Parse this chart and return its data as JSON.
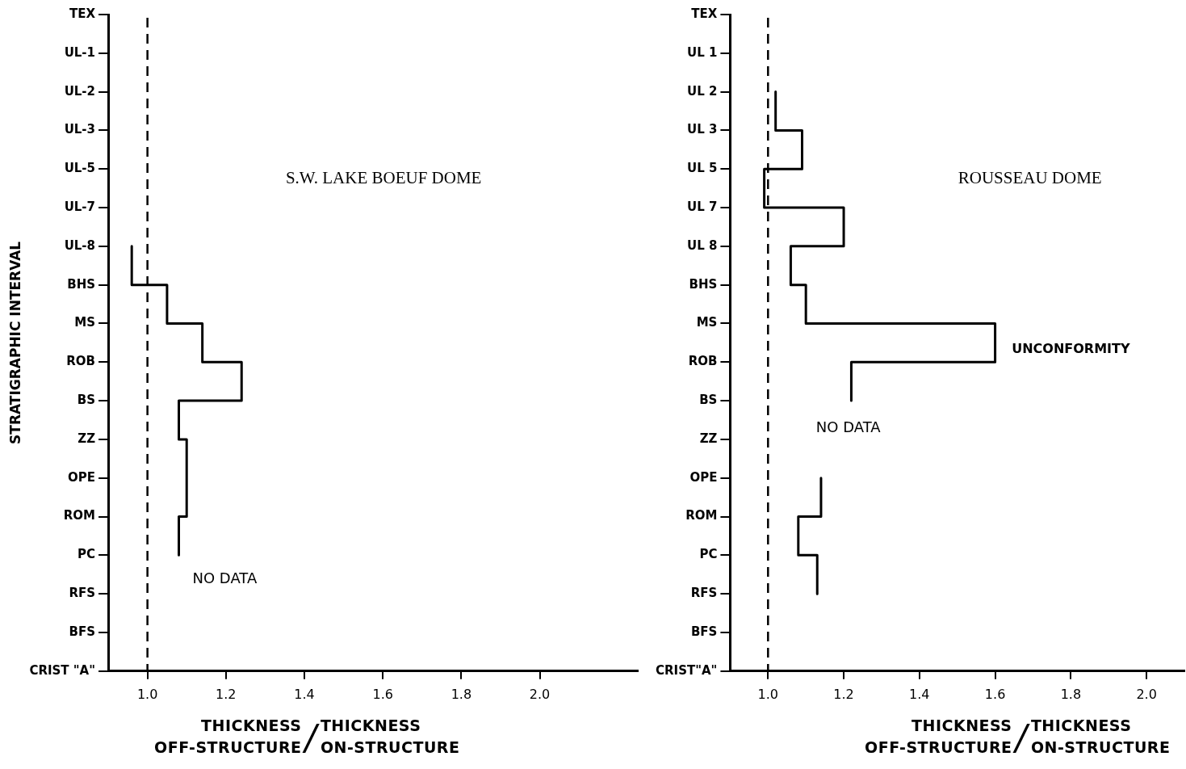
{
  "chart_data": [
    {
      "type": "step",
      "orientation": "horizontal",
      "title": "S.W. LAKE BOEUF DOME",
      "ylabel": "STRATIGRAPHIC INTERVAL",
      "xlabel": "THICKNESS OFF-STRUCTURE/THICKNESS ON-STRUCTURE",
      "categories": [
        "TEX",
        "UL-1",
        "UL-2",
        "UL-3",
        "UL-5",
        "UL-7",
        "UL-8",
        "BHS",
        "MS",
        "ROB",
        "BS",
        "ZZ",
        "OPE",
        "ROM",
        "PC",
        "RFS",
        "BFS",
        "CRIST \"A\""
      ],
      "series": [
        {
          "color": "#000000",
          "values": [
            null,
            null,
            null,
            null,
            null,
            null,
            0.96,
            1.05,
            1.14,
            1.24,
            1.08,
            1.1,
            1.1,
            1.08,
            1.08,
            null,
            null,
            null
          ]
        }
      ],
      "xlim": [
        0.9,
        2.25
      ],
      "xticks": [
        {
          "value": 1,
          "label": "1.0"
        },
        {
          "value": 1.2,
          "label": "1.2"
        },
        {
          "value": 1.4,
          "label": "1.4"
        },
        {
          "value": 1.6,
          "label": "1.6"
        },
        {
          "value": 1.8,
          "label": "1.8"
        },
        {
          "value": 2,
          "label": "2.0"
        }
      ],
      "ref_lines": [
        {
          "axis": "x",
          "value": 1,
          "color": "#000000",
          "line_style": "dashed"
        }
      ],
      "annotations": [
        "NO DATA"
      ]
    },
    {
      "type": "step",
      "orientation": "horizontal",
      "title": "ROUSSEAU DOME",
      "xlabel": "THICKNESS OFF-STRUCTURE/THICKNESS ON-STRUCTURE",
      "categories": [
        "TEX",
        "UL 1",
        "UL 2",
        "UL 3",
        "UL 5",
        "UL 7",
        "UL 8",
        "BHS",
        "MS",
        "ROB",
        "BS",
        "ZZ",
        "OPE",
        "ROM",
        "PC",
        "RFS",
        "BFS",
        "CRIST\"A\""
      ],
      "series": [
        {
          "color": "#000000",
          "values": [
            null,
            null,
            1.02,
            1.09,
            0.99,
            1.2,
            1.06,
            1.1,
            1.6,
            1.22,
            1.22,
            null,
            1.14,
            1.08,
            1.13,
            1.13,
            null,
            null
          ]
        }
      ],
      "xlim": [
        0.9,
        2.1
      ],
      "xticks": [
        {
          "value": 1,
          "label": "1.0"
        },
        {
          "value": 1.2,
          "label": "1.2"
        },
        {
          "value": 1.4,
          "label": "1.4"
        },
        {
          "value": 1.6,
          "label": "1.6"
        },
        {
          "value": 1.8,
          "label": "1.8"
        },
        {
          "value": 2,
          "label": "2.0"
        }
      ],
      "ref_lines": [
        {
          "axis": "x",
          "value": 1,
          "color": "#000000",
          "line_style": "dashed"
        }
      ],
      "annotations": [
        "UNCONFORMITY",
        "NO DATA"
      ]
    }
  ]
}
